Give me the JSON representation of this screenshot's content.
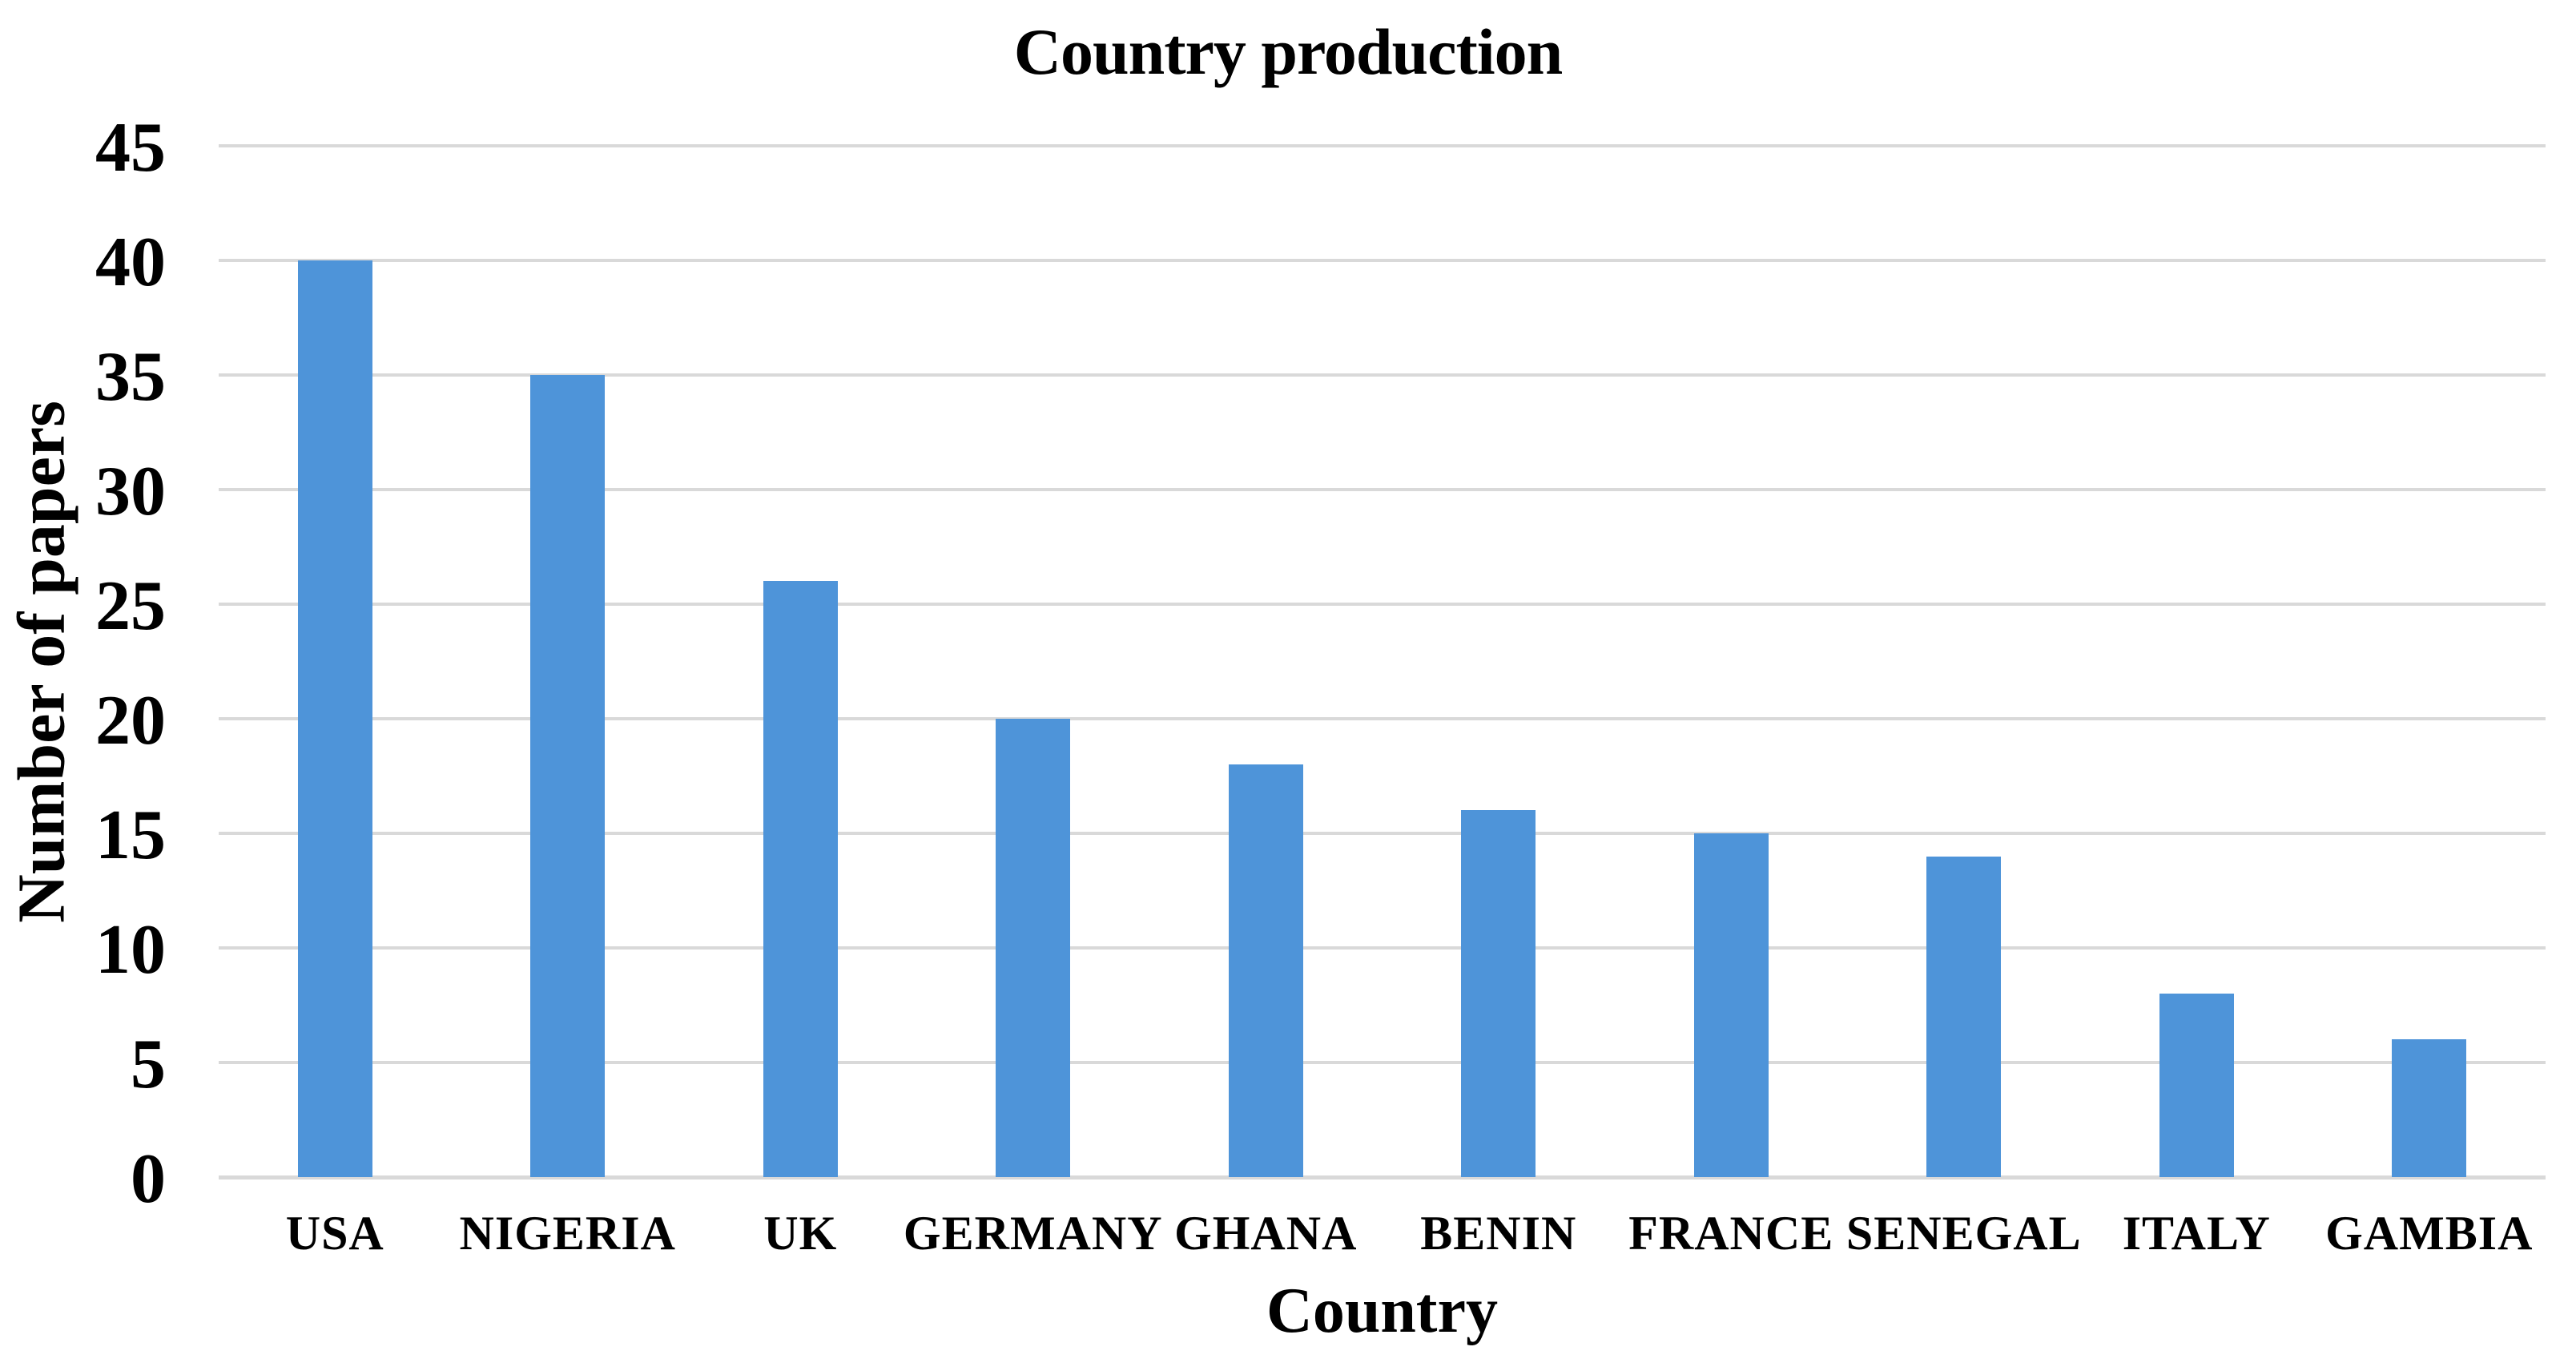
{
  "chart_data": {
    "type": "bar",
    "title": "Country production",
    "xlabel": "Country",
    "ylabel": "Number of papers",
    "categories": [
      "USA",
      "NIGERIA",
      "UK",
      "GERMANY",
      "GHANA",
      "BENIN",
      "FRANCE",
      "SENEGAL",
      "ITALY",
      "GAMBIA"
    ],
    "values": [
      40,
      35,
      26,
      20,
      18,
      16,
      15,
      14,
      8,
      6
    ],
    "ylim": [
      0,
      45
    ],
    "yticks": [
      0,
      5,
      10,
      15,
      20,
      25,
      30,
      35,
      40,
      45
    ],
    "grid": "horizontal",
    "legend_position": "none",
    "colors": {
      "bar": "#4E94D9",
      "gridline": "#D9D9D9",
      "text": "#000000",
      "background": "#FFFFFF"
    }
  }
}
